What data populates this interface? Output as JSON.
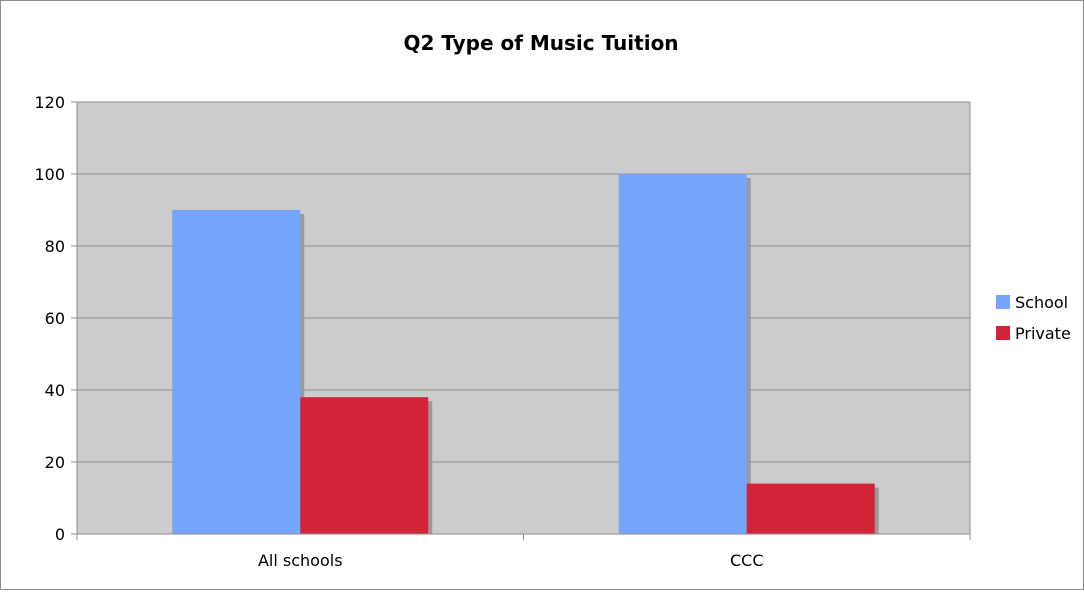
{
  "chart_data": {
    "type": "bar",
    "title": "Q2 Type of Music Tuition",
    "xlabel": "",
    "ylabel": "",
    "categories": [
      "All schools",
      "CCC"
    ],
    "series": [
      {
        "name": "School",
        "values": [
          90,
          100
        ],
        "color": "#75a5fa"
      },
      {
        "name": "Private",
        "values": [
          38,
          14
        ],
        "color": "#d22439"
      }
    ],
    "ylim": [
      0,
      120
    ],
    "y_ticks": [
      "0",
      "20",
      "40",
      "60",
      "80",
      "100",
      "120"
    ],
    "grid": true,
    "legend": "right",
    "plot_background": "#cccccc",
    "shadow_color": "#999999"
  }
}
